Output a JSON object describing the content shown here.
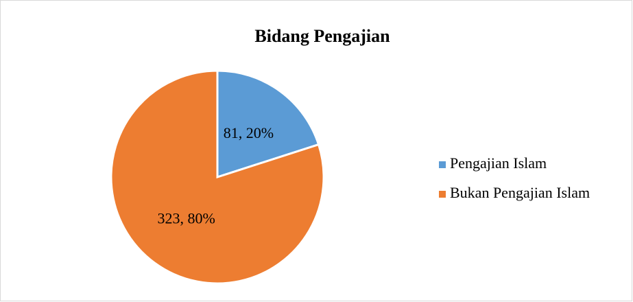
{
  "chart_data": {
    "type": "pie",
    "title": "Bidang Pengajian",
    "categories": [
      "Pengajian Islam",
      "Bukan Pengajian Islam"
    ],
    "values": [
      81,
      323
    ],
    "value_labels": [
      "81, 20%",
      "323, 80%"
    ],
    "colors": [
      "#5b9bd5",
      "#ed7d31"
    ],
    "legend": "right"
  }
}
